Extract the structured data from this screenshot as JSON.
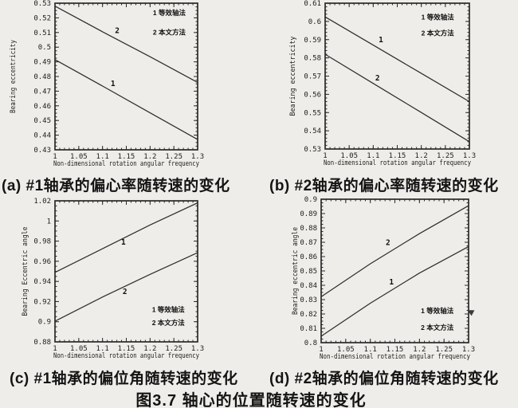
{
  "figure_caption": "图3.7 轴心的位置随转速的变化",
  "colors": {
    "paper": "#eeede9",
    "ink": "#1d1d1d",
    "curve": "#2e2e2e"
  },
  "chart_data": [
    {
      "id": "a",
      "type": "line",
      "caption": "(a) #1轴承的偏心率随转速的变化",
      "xlabel": "Non-dimensional rotation angular frequency",
      "ylabel": "Bearing eccentricity",
      "xlim": [
        1,
        1.3
      ],
      "ylim": [
        0.43,
        0.53
      ],
      "xticks": [
        1,
        1.05,
        1.1,
        1.15,
        1.2,
        1.25,
        1.3
      ],
      "xtick_labels": [
        "1",
        "1.05",
        "1.1",
        "1.15",
        "1.2",
        "1.25",
        "1.3"
      ],
      "yticks": [
        0.43,
        0.44,
        0.45,
        0.46,
        0.47,
        0.48,
        0.49,
        0.5,
        0.51,
        0.52,
        0.53
      ],
      "ytick_labels": [
        "0.43",
        "0.44",
        "0.45",
        "0.46",
        "0.47",
        "0.48",
        "0.49",
        "0.5",
        "0.51",
        "0.52",
        "0.53"
      ],
      "x_minor_step": 0.01,
      "y_minor_step": 0.0025,
      "grid": false,
      "series": [
        {
          "name": "2",
          "label_at": [
            1.131,
            0.5095
          ],
          "points": [
            [
              1,
              0.528
            ],
            [
              1.1,
              0.5105
            ],
            [
              1.2,
              0.4935
            ],
            [
              1.3,
              0.476
            ]
          ]
        },
        {
          "name": "1",
          "label_at": [
            1.122,
            0.4735
          ],
          "points": [
            [
              1,
              0.4915
            ],
            [
              1.1,
              0.4735
            ],
            [
              1.2,
              0.4552
            ],
            [
              1.3,
              0.437
            ]
          ]
        }
      ],
      "legend": [
        {
          "label": "1 等效轴法",
          "at": [
            1.206,
            0.5218
          ]
        },
        {
          "label": "2 本文方法",
          "at": [
            1.206,
            0.5085
          ]
        }
      ]
    },
    {
      "id": "b",
      "type": "line",
      "caption": "(b) #2轴承的偏心率随转速的变化",
      "xlabel": "Non-dimensional rotation angular frequency",
      "ylabel": "Bearing eccentricity",
      "xlim": [
        1,
        1.3
      ],
      "ylim": [
        0.53,
        0.61
      ],
      "xticks": [
        1,
        1.05,
        1.1,
        1.15,
        1.2,
        1.25,
        1.3
      ],
      "xtick_labels": [
        "1",
        "1.05",
        "1.1",
        "1.15",
        "1.2",
        "1.25",
        "1.3"
      ],
      "yticks": [
        0.53,
        0.54,
        0.55,
        0.56,
        0.57,
        0.58,
        0.59,
        0.6,
        0.61
      ],
      "ytick_labels": [
        "0.53",
        "0.54",
        "0.55",
        "0.56",
        "0.57",
        "0.58",
        "0.59",
        "0.6",
        "0.61"
      ],
      "x_minor_step": 0.01,
      "y_minor_step": 0.002,
      "grid": false,
      "series": [
        {
          "name": "1",
          "label_at": [
            1.116,
            0.5885
          ],
          "points": [
            [
              1,
              0.6025
            ],
            [
              1.1,
              0.587
            ],
            [
              1.2,
              0.5715
            ],
            [
              1.3,
              0.556
            ]
          ]
        },
        {
          "name": "2",
          "label_at": [
            1.109,
            0.5675
          ],
          "points": [
            [
              1,
              0.582
            ],
            [
              1.1,
              0.566
            ],
            [
              1.2,
              0.55
            ],
            [
              1.3,
              0.534
            ]
          ]
        }
      ],
      "legend": [
        {
          "label": "1 等效轴法",
          "at": [
            1.2,
            0.601
          ]
        },
        {
          "label": "2 本文方法",
          "at": [
            1.2,
            0.5922
          ]
        }
      ]
    },
    {
      "id": "c",
      "type": "line",
      "caption": "(c) #1轴承的偏位角随转速的变化",
      "xlabel": "Non-dimensional rotation angular frequency",
      "ylabel": "Bearing Eccentric angle",
      "xlim": [
        1,
        1.3
      ],
      "ylim": [
        0.88,
        1.02
      ],
      "xticks": [
        1,
        1.05,
        1.1,
        1.15,
        1.2,
        1.25,
        1.3
      ],
      "xtick_labels": [
        "1",
        "1.05",
        "1.1",
        "1.15",
        "1.2",
        "1.25",
        "1.3"
      ],
      "yticks": [
        0.88,
        0.9,
        0.92,
        0.94,
        0.96,
        0.98,
        1,
        1.02
      ],
      "ytick_labels": [
        "0.88",
        "0.9",
        "0.92",
        "0.94",
        "0.96",
        "0.98",
        "1",
        "1.02"
      ],
      "x_minor_step": 0.01,
      "y_minor_step": 0.005,
      "grid": false,
      "series": [
        {
          "name": "1",
          "label_at": [
            1.144,
            0.9765
          ],
          "points": [
            [
              1,
              0.949
            ],
            [
              1.1,
              0.9725
            ],
            [
              1.2,
              0.996
            ],
            [
              1.3,
              1.018
            ]
          ]
        },
        {
          "name": "2",
          "label_at": [
            1.147,
            0.9275
          ],
          "points": [
            [
              1,
              0.9005
            ],
            [
              1.1,
              0.9245
            ],
            [
              1.2,
              0.947
            ],
            [
              1.3,
              0.9685
            ]
          ]
        }
      ],
      "legend": [
        {
          "label": "1 等效轴法",
          "at": [
            1.204,
            0.9095
          ]
        },
        {
          "label": "2 本文方法",
          "at": [
            1.204,
            0.8965
          ]
        }
      ]
    },
    {
      "id": "d",
      "type": "line",
      "caption": "(d) #2轴承的偏位角随转速的变化",
      "xlabel": "Non-dimensional rotation angular frequency",
      "ylabel": "Bearing eccentric angle",
      "xlim": [
        1,
        1.3
      ],
      "ylim": [
        0.8,
        0.9
      ],
      "xticks": [
        1,
        1.05,
        1.1,
        1.15,
        1.2,
        1.25,
        1.3
      ],
      "xtick_labels": [
        "1",
        "1.05",
        "1.1",
        "1.15",
        "1.2",
        "1.25",
        "1.3"
      ],
      "yticks": [
        0.8,
        0.81,
        0.82,
        0.83,
        0.84,
        0.85,
        0.86,
        0.87,
        0.88,
        0.89,
        0.9
      ],
      "ytick_labels": [
        "0.8",
        "0.81",
        "0.82",
        "0.83",
        "0.84",
        "0.85",
        "0.86",
        "0.87",
        "0.88",
        "0.89",
        "0.9"
      ],
      "x_minor_step": 0.01,
      "y_minor_step": 0.0025,
      "grid": false,
      "series": [
        {
          "name": "2",
          "label_at": [
            1.136,
            0.868
          ],
          "points": [
            [
              1,
              0.832
            ],
            [
              1.1,
              0.855
            ],
            [
              1.2,
              0.876
            ],
            [
              1.3,
              0.8955
            ]
          ]
        },
        {
          "name": "1",
          "label_at": [
            1.143,
            0.8405
          ],
          "points": [
            [
              1,
              0.8045
            ],
            [
              1.1,
              0.8275
            ],
            [
              1.2,
              0.8485
            ],
            [
              1.3,
              0.867
            ]
          ]
        }
      ],
      "legend": [
        {
          "label": "1 等效轴法",
          "at": [
            1.203,
            0.8205
          ]
        },
        {
          "label": "2 本文方法",
          "at": [
            1.203,
            0.809
          ]
        }
      ]
    }
  ]
}
